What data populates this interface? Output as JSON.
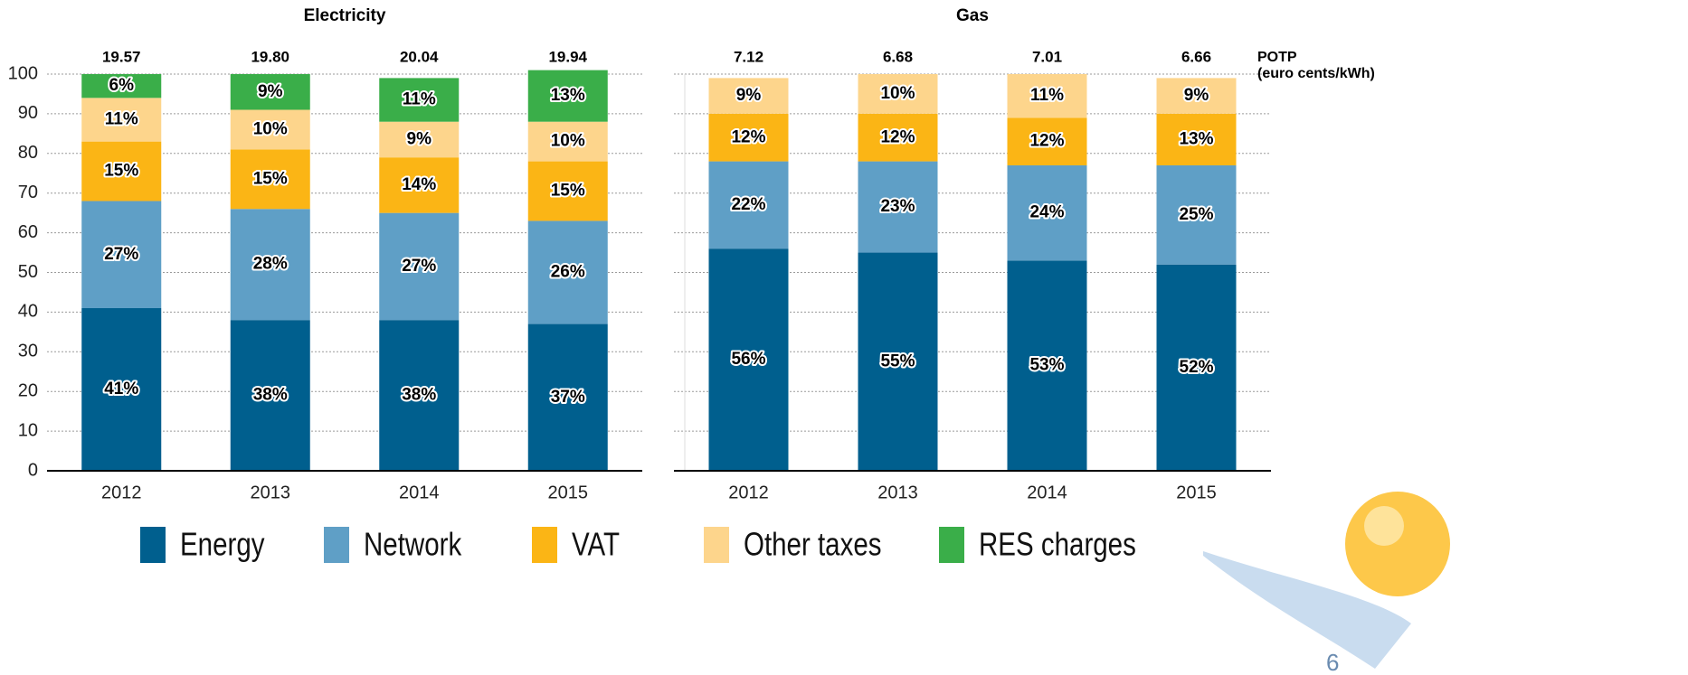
{
  "chart_data": [
    {
      "type": "stacked_bar",
      "title": "Electricity",
      "categories": [
        "2012",
        "2013",
        "2014",
        "2015"
      ],
      "series": [
        {
          "name": "Energy",
          "color": "#005f8e",
          "values": [
            41,
            38,
            38,
            37
          ],
          "value_labels": [
            "41%",
            "38%",
            "38%",
            "37%"
          ]
        },
        {
          "name": "Network",
          "color": "#5f9fc6",
          "values": [
            27,
            28,
            27,
            26
          ],
          "value_labels": [
            "27%",
            "28%",
            "27%",
            "26%"
          ]
        },
        {
          "name": "VAT",
          "color": "#fbb515",
          "values": [
            15,
            15,
            14,
            15
          ],
          "value_labels": [
            "15%",
            "15%",
            "14%",
            "15%"
          ]
        },
        {
          "name": "Other taxes",
          "color": "#fdd58c",
          "values": [
            11,
            10,
            9,
            10
          ],
          "value_labels": [
            "11%",
            "10%",
            "9%",
            "10%"
          ]
        },
        {
          "name": "RES charges",
          "color": "#3aae49",
          "values": [
            6,
            9,
            11,
            13
          ],
          "value_labels": [
            "6%",
            "9%",
            "11%",
            "13%"
          ]
        }
      ],
      "totals": {
        "values": [
          19.57,
          19.8,
          20.04,
          19.94
        ],
        "value_labels": [
          "19.57",
          "19.80",
          "20.04",
          "19.94"
        ]
      },
      "ylim": [
        0,
        100
      ],
      "yticks": [
        0,
        10,
        20,
        30,
        40,
        50,
        60,
        70,
        80,
        90,
        100
      ],
      "grid": true
    },
    {
      "type": "stacked_bar",
      "title": "Gas",
      "categories": [
        "2012",
        "2013",
        "2014",
        "2015"
      ],
      "series": [
        {
          "name": "Energy",
          "color": "#005f8e",
          "values": [
            56,
            55,
            53,
            52
          ],
          "value_labels": [
            "56%",
            "55%",
            "53%",
            "52%"
          ]
        },
        {
          "name": "Network",
          "color": "#5f9fc6",
          "values": [
            22,
            23,
            24,
            25
          ],
          "value_labels": [
            "22%",
            "23%",
            "24%",
            "25%"
          ]
        },
        {
          "name": "VAT",
          "color": "#fbb515",
          "values": [
            12,
            12,
            12,
            13
          ],
          "value_labels": [
            "12%",
            "12%",
            "12%",
            "13%"
          ]
        },
        {
          "name": "Other taxes",
          "color": "#fdd58c",
          "values": [
            9,
            10,
            11,
            9
          ],
          "value_labels": [
            "9%",
            "10%",
            "11%",
            "9%"
          ]
        }
      ],
      "totals": {
        "values": [
          7.12,
          6.68,
          7.01,
          6.66
        ],
        "value_labels": [
          "7.12",
          "6.68",
          "7.01",
          "6.66"
        ]
      },
      "annotation": [
        "POTP",
        "(euro cents/kWh)"
      ],
      "ylim": [
        0,
        100
      ],
      "yticks": [
        0,
        10,
        20,
        30,
        40,
        50,
        60,
        70,
        80,
        90,
        100
      ],
      "grid": true
    }
  ],
  "page_number": "6"
}
